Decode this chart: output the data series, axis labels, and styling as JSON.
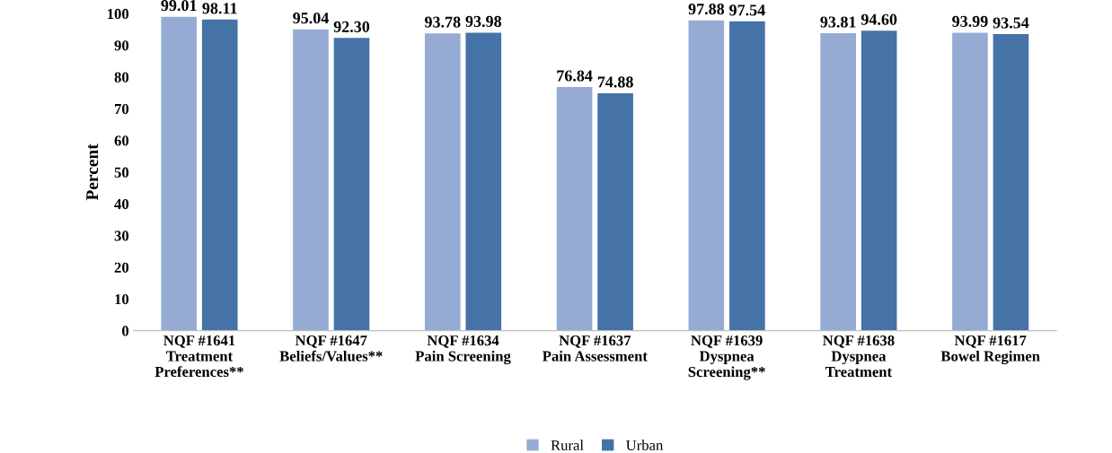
{
  "chart_data": {
    "type": "bar",
    "ylabel": "Percent",
    "categories": [
      "NQF #1641\nTreatment\nPreferences**",
      "NQF #1647\nBeliefs/Values**",
      "NQF #1634\nPain Screening",
      "NQF #1637\nPain Assessment",
      "NQF #1639\nDyspnea\nScreening**",
      "NQF #1638\nDyspnea\nTreatment",
      "NQF #1617\nBowel Regimen"
    ],
    "series": [
      {
        "name": "Rural",
        "color": "#95abd3",
        "values": [
          99.01,
          95.04,
          93.78,
          76.84,
          97.88,
          93.81,
          93.99
        ],
        "value_labels": [
          "99.01",
          "95.04",
          "93.78",
          "76.84",
          "97.88",
          "93.81",
          "93.99"
        ]
      },
      {
        "name": "Urban",
        "color": "#4572a7",
        "values": [
          98.11,
          92.3,
          93.98,
          74.88,
          97.54,
          94.6,
          93.54
        ],
        "value_labels": [
          "98.11",
          "92.30",
          "93.98",
          "74.88",
          "97.54",
          "94.60",
          "93.54"
        ]
      }
    ],
    "ylim": [
      0,
      100
    ],
    "yticks": [
      0,
      10,
      20,
      30,
      40,
      50,
      60,
      70,
      80,
      90,
      100
    ],
    "grid": false,
    "legend": "bottom"
  }
}
